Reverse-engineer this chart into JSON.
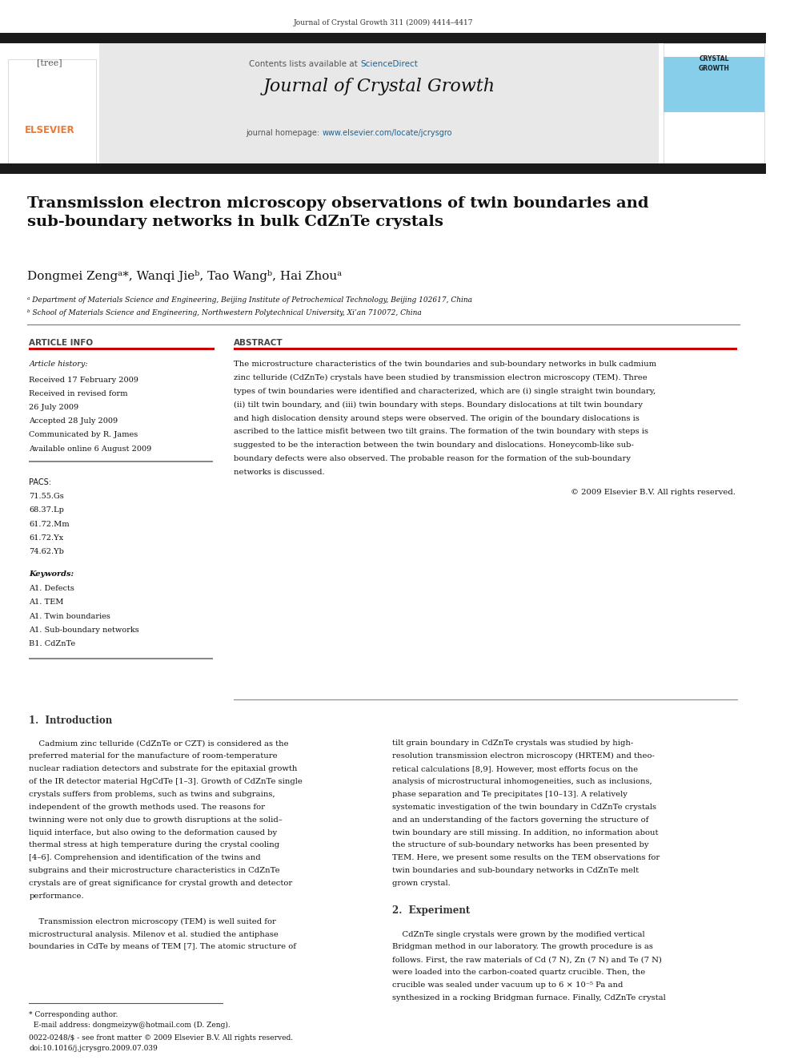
{
  "page_width": 9.92,
  "page_height": 13.23,
  "bg_color": "#ffffff",
  "journal_ref": "Journal of Crystal Growth 311 (2009) 4414–4417",
  "header_bg": "#e8e8e8",
  "contents_line": "Contents lists available at ScienceDirect",
  "sciencedirect_color": "#1a6496",
  "journal_title": "Journal of Crystal Growth",
  "homepage_color": "#1a6496",
  "elsevier_color": "#f07830",
  "paper_title": "Transmission electron microscopy observations of twin boundaries and\nsub-boundary networks in bulk CdZnTe crystals",
  "authors": "Dongmei Zengᵃ*, Wanqi Jieᵇ, Tao Wangᵇ, Hai Zhouᵃ",
  "affil_a": "ᵃ Department of Materials Science and Engineering, Beijing Institute of Petrochemical Technology, Beijing 102617, China",
  "affil_b": "ᵇ School of Materials Science and Engineering, Northwestern Polytechnical University, Xi’an 710072, China",
  "article_info_title": "ARTICLE INFO",
  "abstract_title": "ABSTRACT",
  "article_history_label": "Article history:",
  "received": "Received 17 February 2009",
  "received_revised1": "Received in revised form",
  "received_revised2": "26 July 2009",
  "accepted": "Accepted 28 July 2009",
  "communicated": "Communicated by R. James",
  "available": "Available online 6 August 2009",
  "pacs_label": "PACS:",
  "pacs_codes": [
    "71.55.Gs",
    "68.37.Lp",
    "61.72.Mm",
    "61.72.Yx",
    "74.62.Yb"
  ],
  "keywords_label": "Keywords:",
  "keywords": [
    "A1. Defects",
    "A1. TEM",
    "A1. Twin boundaries",
    "A1. Sub-boundary networks",
    "B1. CdZnTe"
  ],
  "copyright": "© 2009 Elsevier B.V. All rights reserved.",
  "intro_heading": "1.  Introduction",
  "experiment_heading": "2.  Experiment",
  "footer_line1a": "* Corresponding author.",
  "footer_line1b": "  E-mail address: dongmeizyw@hotmail.com (D. Zeng).",
  "footer_line2a": "0022-0248/$ - see front matter © 2009 Elsevier B.V. All rights reserved.",
  "footer_line2b": "doi:10.1016/j.jcrysgro.2009.07.039",
  "crystal_growth_sidebar_color": "#87ceeb",
  "dark_bar_color": "#1a1a1a",
  "red_line_color": "#cc0000",
  "gray_line_color": "#888888",
  "abstract_lines": [
    "The microstructure characteristics of the twin boundaries and sub-boundary networks in bulk cadmium",
    "zinc telluride (CdZnTe) crystals have been studied by transmission electron microscopy (TEM). Three",
    "types of twin boundaries were identified and characterized, which are (i) single straight twin boundary,",
    "(ii) tilt twin boundary, and (iii) twin boundary with steps. Boundary dislocations at tilt twin boundary",
    "and high dislocation density around steps were observed. The origin of the boundary dislocations is",
    "ascribed to the lattice misfit between two tilt grains. The formation of the twin boundary with steps is",
    "suggested to be the interaction between the twin boundary and dislocations. Honeycomb-like sub-",
    "boundary defects were also observed. The probable reason for the formation of the sub-boundary",
    "networks is discussed."
  ],
  "intro_left_lines": [
    "    Cadmium zinc telluride (CdZnTe or CZT) is considered as the",
    "preferred material for the manufacture of room-temperature",
    "nuclear radiation detectors and substrate for the epitaxial growth",
    "of the IR detector material HgCdTe [1–3]. Growth of CdZnTe single",
    "crystals suffers from problems, such as twins and subgrains,",
    "independent of the growth methods used. The reasons for",
    "twinning were not only due to growth disruptions at the solid–",
    "liquid interface, but also owing to the deformation caused by",
    "thermal stress at high temperature during the crystal cooling",
    "[4–6]. Comprehension and identification of the twins and",
    "subgrains and their microstructure characteristics in CdZnTe",
    "crystals are of great significance for crystal growth and detector",
    "performance.",
    "",
    "    Transmission electron microscopy (TEM) is well suited for",
    "microstructural analysis. Milenov et al. studied the antiphase",
    "boundaries in CdTe by means of TEM [7]. The atomic structure of"
  ],
  "intro_right_lines": [
    "tilt grain boundary in CdZnTe crystals was studied by high-",
    "resolution transmission electron microscopy (HRTEM) and theo-",
    "retical calculations [8,9]. However, most efforts focus on the",
    "analysis of microstructural inhomogeneities, such as inclusions,",
    "phase separation and Te precipitates [10–13]. A relatively",
    "systematic investigation of the twin boundary in CdZnTe crystals",
    "and an understanding of the factors governing the structure of",
    "twin boundary are still missing. In addition, no information about",
    "the structure of sub-boundary networks has been presented by",
    "TEM. Here, we present some results on the TEM observations for",
    "twin boundaries and sub-boundary networks in CdZnTe melt",
    "grown crystal.",
    "",
    "2.  Experiment",
    "",
    "    CdZnTe single crystals were grown by the modified vertical",
    "Bridgman method in our laboratory. The growth procedure is as",
    "follows. First, the raw materials of Cd (7 N), Zn (7 N) and Te (7 N)",
    "were loaded into the carbon-coated quartz crucible. Then, the",
    "crucible was sealed under vacuum up to 6 × 10⁻⁵ Pa and",
    "synthesized in a rocking Bridgman furnace. Finally, CdZnTe crystal"
  ]
}
